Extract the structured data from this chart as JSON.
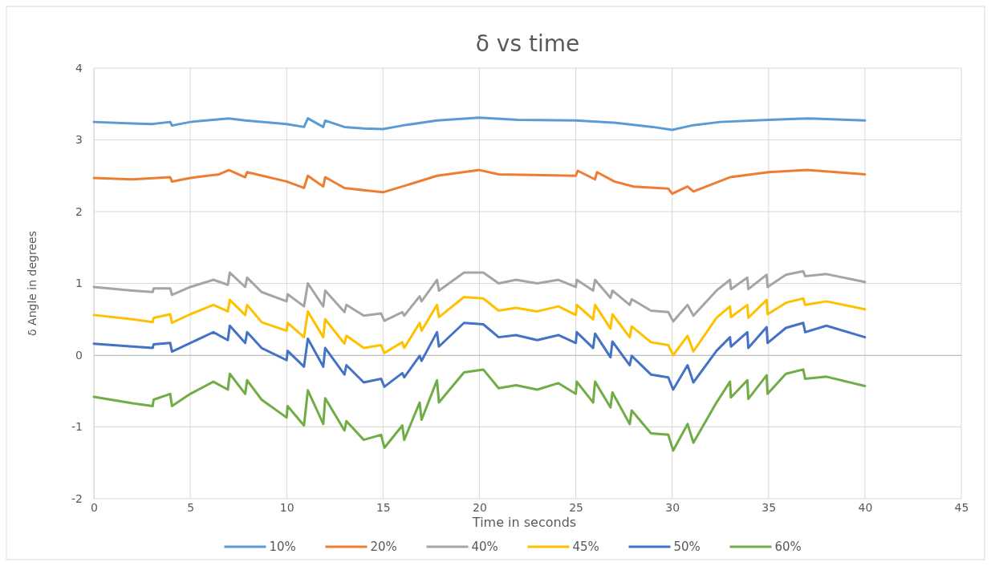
{
  "chart_data": {
    "type": "line",
    "title": "δ vs time",
    "xlabel": "Time  in seconds",
    "ylabel": "δ Angle in degrees",
    "xlim": [
      0,
      45
    ],
    "xticks": [
      0,
      5,
      10,
      15,
      20,
      25,
      30,
      35,
      40,
      45
    ],
    "ylim": [
      -2,
      4
    ],
    "yticks": [
      -2,
      -1,
      0,
      1,
      2,
      3,
      4
    ],
    "grid": true,
    "legend": "bottom",
    "line_style": "solid",
    "marker": "none",
    "x": [
      0,
      2,
      3.05,
      3.1,
      3.96,
      4.05,
      5,
      6.2,
      6.95,
      7.05,
      7.85,
      7.95,
      8.7,
      10,
      10.05,
      10.9,
      11.1,
      11.9,
      12,
      13,
      13.1,
      14,
      14.9,
      15.07,
      16,
      16.1,
      16.9,
      17,
      17.8,
      17.9,
      19.2,
      20.2,
      21,
      21.9,
      23,
      24.1,
      25,
      25.05,
      25.9,
      26,
      26.8,
      26.9,
      27.8,
      27.9,
      28.9,
      29.8,
      30.05,
      30.8,
      31.1,
      32.3,
      33,
      33.05,
      33.9,
      33.95,
      34.9,
      34.95,
      35.9,
      36.8,
      36.9,
      38,
      40
    ],
    "series": [
      {
        "name": "10%",
        "color": "#5b9bd5",
        "x": [
          0,
          2,
          3,
          3.96,
          4.05,
          5,
          7,
          7.85,
          10,
          10.9,
          11.1,
          11.9,
          12,
          13,
          14,
          15,
          16,
          17.8,
          20,
          22,
          25,
          27,
          29,
          30,
          31,
          32.5,
          35,
          37,
          40
        ],
        "values": [
          3.25,
          3.23,
          3.22,
          3.25,
          3.2,
          3.25,
          3.3,
          3.27,
          3.22,
          3.18,
          3.3,
          3.18,
          3.27,
          3.18,
          3.16,
          3.15,
          3.2,
          3.27,
          3.31,
          3.28,
          3.27,
          3.24,
          3.18,
          3.14,
          3.2,
          3.25,
          3.28,
          3.3,
          3.27
        ]
      },
      {
        "name": "20%",
        "color": "#ed7d31",
        "x": [
          0,
          2,
          3.96,
          4.05,
          5,
          6.5,
          7,
          7.85,
          7.95,
          10,
          10.9,
          11.1,
          11.9,
          12,
          13,
          14,
          15,
          16,
          17.8,
          20,
          21,
          25,
          25.1,
          26,
          26.1,
          27,
          28,
          29.8,
          30,
          30.8,
          31.1,
          33,
          35,
          37,
          40
        ],
        "values": [
          2.47,
          2.45,
          2.48,
          2.42,
          2.47,
          2.52,
          2.58,
          2.48,
          2.55,
          2.42,
          2.33,
          2.5,
          2.35,
          2.48,
          2.33,
          2.3,
          2.27,
          2.35,
          2.5,
          2.58,
          2.52,
          2.5,
          2.57,
          2.45,
          2.55,
          2.42,
          2.35,
          2.32,
          2.25,
          2.35,
          2.28,
          2.48,
          2.55,
          2.58,
          2.52
        ]
      },
      {
        "name": "40%",
        "color": "#a5a5a5",
        "values": [
          0.95,
          0.9,
          0.88,
          0.93,
          0.93,
          0.84,
          0.95,
          1.05,
          0.98,
          1.15,
          0.95,
          1.08,
          0.88,
          0.75,
          0.85,
          0.68,
          1.0,
          0.68,
          0.9,
          0.6,
          0.7,
          0.55,
          0.58,
          0.48,
          0.6,
          0.55,
          0.82,
          0.75,
          1.05,
          0.9,
          1.15,
          1.15,
          1.0,
          1.05,
          1.0,
          1.05,
          0.95,
          1.05,
          0.9,
          1.05,
          0.8,
          0.9,
          0.7,
          0.78,
          0.62,
          0.6,
          0.47,
          0.7,
          0.55,
          0.9,
          1.05,
          0.92,
          1.08,
          0.92,
          1.12,
          0.95,
          1.12,
          1.17,
          1.1,
          1.13,
          1.02
        ]
      },
      {
        "name": "45%",
        "color": "#ffc000",
        "values": [
          0.56,
          0.5,
          0.46,
          0.52,
          0.57,
          0.45,
          0.57,
          0.7,
          0.61,
          0.77,
          0.56,
          0.7,
          0.46,
          0.34,
          0.45,
          0.25,
          0.61,
          0.25,
          0.5,
          0.16,
          0.27,
          0.1,
          0.14,
          0.03,
          0.18,
          0.1,
          0.45,
          0.34,
          0.7,
          0.53,
          0.81,
          0.79,
          0.62,
          0.66,
          0.61,
          0.68,
          0.56,
          0.7,
          0.5,
          0.7,
          0.37,
          0.57,
          0.25,
          0.4,
          0.18,
          0.14,
          0.0,
          0.27,
          0.05,
          0.52,
          0.68,
          0.53,
          0.7,
          0.52,
          0.77,
          0.57,
          0.73,
          0.79,
          0.7,
          0.75,
          0.64
        ]
      },
      {
        "name": "50%",
        "color": "#4472c4",
        "values": [
          0.16,
          0.12,
          0.1,
          0.15,
          0.17,
          0.05,
          0.17,
          0.32,
          0.21,
          0.41,
          0.17,
          0.32,
          0.1,
          -0.07,
          0.06,
          -0.16,
          0.23,
          -0.16,
          0.1,
          -0.27,
          -0.14,
          -0.38,
          -0.33,
          -0.44,
          -0.25,
          -0.31,
          -0.01,
          -0.08,
          0.32,
          0.12,
          0.45,
          0.43,
          0.25,
          0.28,
          0.21,
          0.28,
          0.17,
          0.32,
          0.1,
          0.3,
          -0.03,
          0.19,
          -0.14,
          -0.01,
          -0.27,
          -0.31,
          -0.48,
          -0.14,
          -0.38,
          0.06,
          0.25,
          0.12,
          0.32,
          0.1,
          0.39,
          0.17,
          0.38,
          0.45,
          0.32,
          0.41,
          0.25
        ]
      },
      {
        "name": "60%",
        "color": "#70ad47",
        "values": [
          -0.58,
          -0.67,
          -0.71,
          -0.62,
          -0.54,
          -0.71,
          -0.54,
          -0.37,
          -0.48,
          -0.26,
          -0.54,
          -0.35,
          -0.62,
          -0.87,
          -0.71,
          -0.98,
          -0.49,
          -0.96,
          -0.6,
          -1.05,
          -0.92,
          -1.18,
          -1.11,
          -1.29,
          -0.98,
          -1.18,
          -0.66,
          -0.9,
          -0.35,
          -0.66,
          -0.24,
          -0.2,
          -0.46,
          -0.42,
          -0.48,
          -0.39,
          -0.54,
          -0.37,
          -0.66,
          -0.37,
          -0.73,
          -0.52,
          -0.96,
          -0.77,
          -1.09,
          -1.11,
          -1.33,
          -0.96,
          -1.22,
          -0.66,
          -0.37,
          -0.59,
          -0.35,
          -0.61,
          -0.28,
          -0.54,
          -0.26,
          -0.2,
          -0.33,
          -0.3,
          -0.43
        ]
      }
    ]
  }
}
